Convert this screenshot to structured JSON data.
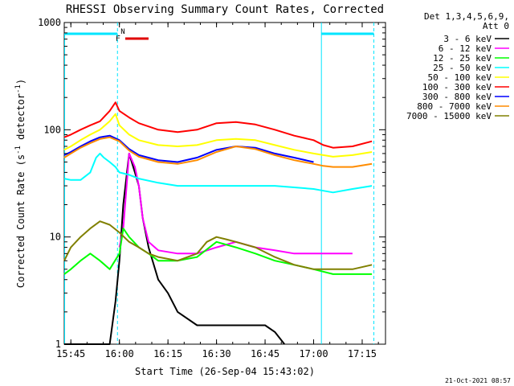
{
  "chart_data": {
    "type": "line",
    "title": "RHESSI Observing Summary Count Rates, Corrected",
    "xlabel": "Start Time (26-Sep-04 15:43:02)",
    "ylabel": "Corrected Count Rate (s",
    "ylabel_sup1": "-1",
    "ylabel_mid": " detector",
    "ylabel_sup2": "-1",
    "ylabel_end": ")",
    "y_scale": "log",
    "ylim": [
      1,
      1000
    ],
    "xlim_minutes": [
      15.716,
      17.37
    ],
    "x_tick_labels": [
      "15:45",
      "16:00",
      "16:15",
      "16:30",
      "16:45",
      "17:00",
      "17:15"
    ],
    "x_tick_hours": [
      15.75,
      16.0,
      16.25,
      16.5,
      16.75,
      17.0,
      17.25
    ],
    "y_tick_labels": [
      "1",
      "10",
      "100",
      "1000"
    ],
    "y_tick_values": [
      1,
      10,
      100,
      1000
    ],
    "legend_header": [
      "Det 1,3,4,5,6,9,",
      "Att 0"
    ],
    "legend_placement": "right",
    "flags": {
      "saa_night_color": "#00e5ff",
      "flare_color": "#e00000",
      "flare_label": "F",
      "night_label": "N",
      "saa_bar": [
        15.716,
        15.99
      ],
      "saa_bar2": [
        17.04,
        17.31
      ],
      "flare_bar": [
        16.03,
        16.15
      ],
      "night_edges": [
        15.99,
        17.04,
        17.31
      ]
    },
    "footer_date": "21-Oct-2021 08:57",
    "series": [
      {
        "name": "3 - 6 keV",
        "color": "#000000",
        "x": [
          15.716,
          15.8,
          15.9,
          15.95,
          15.98,
          16.0,
          16.02,
          16.05,
          16.08,
          16.1,
          16.12,
          16.15,
          16.2,
          16.25,
          16.3,
          16.4,
          16.5,
          16.6,
          16.7,
          16.75,
          16.8,
          16.85
        ],
        "y": [
          1.0,
          1.0,
          1.0,
          1.0,
          2.5,
          6,
          20,
          60,
          40,
          30,
          15,
          8,
          4,
          3,
          2,
          1.5,
          1.5,
          1.5,
          1.5,
          1.5,
          1.3,
          1.0
        ]
      },
      {
        "name": "6 - 12 keV",
        "color": "#ff00ff",
        "x": [
          16.0,
          16.02,
          16.05,
          16.08,
          16.1,
          16.12,
          16.15,
          16.2,
          16.3,
          16.4,
          16.5,
          16.6,
          16.7,
          16.8,
          16.9,
          17.0,
          17.05,
          17.1,
          17.15,
          17.2
        ],
        "y": [
          8,
          12,
          60,
          45,
          30,
          15,
          9,
          7.5,
          7,
          7,
          8,
          9,
          8,
          7.5,
          7,
          7,
          7,
          7,
          7,
          7
        ]
      },
      {
        "name": "12 - 25 keV",
        "color": "#00ff00",
        "x": [
          15.716,
          15.75,
          15.8,
          15.85,
          15.9,
          15.95,
          16.0,
          16.02,
          16.05,
          16.1,
          16.15,
          16.2,
          16.3,
          16.4,
          16.5,
          16.6,
          16.7,
          16.8,
          16.9,
          17.0,
          17.1,
          17.2,
          17.3
        ],
        "y": [
          4.5,
          5,
          6,
          7,
          6,
          5,
          7,
          12,
          10,
          8,
          7,
          6,
          6,
          6.5,
          9,
          8,
          7,
          6,
          5.5,
          5,
          4.5,
          4.5,
          4.5
        ]
      },
      {
        "name": "25 - 50 keV",
        "color": "#00ffff",
        "x": [
          15.716,
          15.75,
          15.8,
          15.85,
          15.88,
          15.9,
          15.92,
          15.95,
          15.98,
          16.0,
          16.05,
          16.1,
          16.2,
          16.3,
          16.4,
          16.5,
          16.6,
          16.7,
          16.8,
          16.9,
          17.0,
          17.05,
          17.1,
          17.2,
          17.3
        ],
        "y": [
          35,
          34,
          34,
          40,
          55,
          60,
          55,
          50,
          45,
          40,
          38,
          35,
          32,
          30,
          30,
          30,
          30,
          30,
          30,
          29,
          28,
          27,
          26,
          28,
          30
        ]
      },
      {
        "name": "50 - 100 keV",
        "color": "#ffff00",
        "x": [
          15.716,
          15.75,
          15.8,
          15.85,
          15.9,
          15.95,
          15.98,
          16.0,
          16.05,
          16.1,
          16.2,
          16.3,
          16.4,
          16.5,
          16.6,
          16.7,
          16.8,
          16.9,
          17.0,
          17.05,
          17.1,
          17.2,
          17.3
        ],
        "y": [
          65,
          70,
          80,
          90,
          100,
          120,
          140,
          110,
          90,
          80,
          72,
          70,
          72,
          80,
          82,
          80,
          72,
          65,
          60,
          58,
          56,
          58,
          62
        ]
      },
      {
        "name": "100 - 300 keV",
        "color": "#ff0000",
        "x": [
          15.716,
          15.75,
          15.8,
          15.85,
          15.9,
          15.95,
          15.98,
          16.0,
          16.05,
          16.1,
          16.2,
          16.3,
          16.4,
          16.5,
          16.6,
          16.7,
          16.8,
          16.9,
          17.0,
          17.05,
          17.1,
          17.2,
          17.3
        ],
        "y": [
          85,
          90,
          100,
          110,
          120,
          150,
          180,
          150,
          130,
          115,
          100,
          95,
          100,
          115,
          118,
          112,
          100,
          88,
          80,
          72,
          68,
          70,
          78
        ]
      },
      {
        "name": "300 - 800 keV",
        "color": "#0000ff",
        "x": [
          15.716,
          15.75,
          15.8,
          15.85,
          15.9,
          15.95,
          16.0,
          16.05,
          16.1,
          16.2,
          16.3,
          16.4,
          16.5,
          16.6,
          16.7,
          16.8,
          16.9,
          17.0
        ],
        "y": [
          58,
          62,
          70,
          78,
          85,
          88,
          80,
          66,
          58,
          52,
          50,
          55,
          65,
          70,
          68,
          60,
          55,
          50
        ]
      },
      {
        "name": "800 - 7000 keV",
        "color": "#ff8c00",
        "x": [
          15.716,
          15.75,
          15.8,
          15.85,
          15.9,
          15.95,
          16.0,
          16.05,
          16.1,
          16.2,
          16.3,
          16.4,
          16.5,
          16.6,
          16.7,
          16.8,
          16.9,
          17.0,
          17.05,
          17.1,
          17.2,
          17.3
        ],
        "y": [
          55,
          60,
          68,
          75,
          82,
          85,
          78,
          64,
          56,
          50,
          48,
          52,
          62,
          70,
          66,
          58,
          52,
          48,
          46,
          45,
          45,
          48
        ]
      },
      {
        "name": "7000 - 15000 keV",
        "color": "#808000",
        "x": [
          15.716,
          15.75,
          15.8,
          15.85,
          15.9,
          15.95,
          16.0,
          16.05,
          16.1,
          16.15,
          16.2,
          16.3,
          16.4,
          16.45,
          16.5,
          16.55,
          16.6,
          16.7,
          16.8,
          16.9,
          17.0,
          17.1,
          17.2,
          17.3
        ],
        "y": [
          6,
          8,
          10,
          12,
          14,
          13,
          11,
          9,
          8,
          7,
          6.5,
          6,
          7,
          9,
          10,
          9.5,
          9,
          8,
          6.5,
          5.5,
          5,
          5,
          5,
          5.5
        ]
      }
    ]
  }
}
